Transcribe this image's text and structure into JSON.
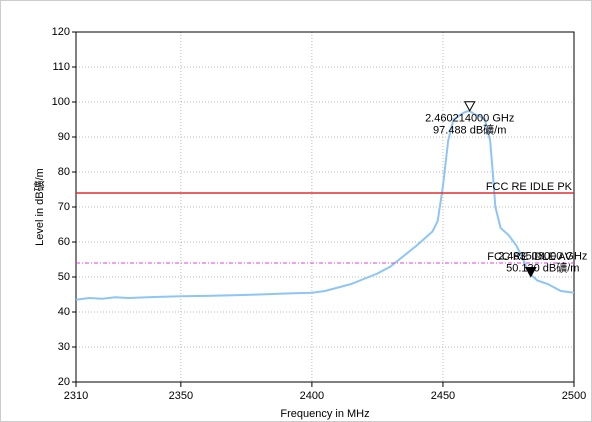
{
  "chart_data": {
    "type": "line",
    "xlabel": "Frequency in MHz",
    "ylabel": "Level in dB礦/m",
    "xlim": [
      2310,
      2500
    ],
    "xticks": [
      2310,
      2350,
      2400,
      2450,
      2500
    ],
    "ylim": [
      20,
      120
    ],
    "yticks": [
      20,
      30,
      40,
      50,
      60,
      70,
      80,
      90,
      100,
      110,
      120
    ],
    "grid": true,
    "series": [
      {
        "color": "#8ec5f5",
        "x": [
          2310,
          2315,
          2320,
          2325,
          2330,
          2340,
          2350,
          2360,
          2370,
          2380,
          2390,
          2400,
          2405,
          2410,
          2415,
          2420,
          2425,
          2430,
          2435,
          2440,
          2443,
          2446,
          2448,
          2450,
          2452,
          2454,
          2456,
          2458,
          2460,
          2462,
          2464,
          2466,
          2468,
          2469,
          2470,
          2472,
          2475,
          2478,
          2480,
          2483,
          2486,
          2490,
          2495,
          2500
        ],
        "values": [
          43.5,
          44,
          43.8,
          44.2,
          44,
          44.3,
          44.5,
          44.6,
          44.8,
          45,
          45.3,
          45.5,
          46,
          47,
          48,
          49.5,
          51,
          53,
          56,
          59,
          61,
          63,
          66,
          76,
          89,
          95,
          96,
          97,
          97.5,
          96.5,
          96,
          95,
          89,
          80,
          70,
          64,
          62,
          59,
          56,
          51,
          49,
          48,
          46,
          45.5
        ]
      }
    ],
    "limit_lines": [
      {
        "name": "FCC RE IDLE PK",
        "value": 74,
        "color": "#e03030"
      },
      {
        "name": "FCC RE IDLE AV",
        "value": 54,
        "color": "#e040e0"
      }
    ],
    "markers": [
      {
        "x": 2460.214,
        "y": 97.488,
        "freq_label": "2.460214000 GHz",
        "level_label": "97.488 dB礦/m"
      },
      {
        "x": 2483.508,
        "y": 50.13,
        "freq_label": "2.483508000 GHz",
        "level_label": "50.130 dB礦/m"
      }
    ]
  }
}
